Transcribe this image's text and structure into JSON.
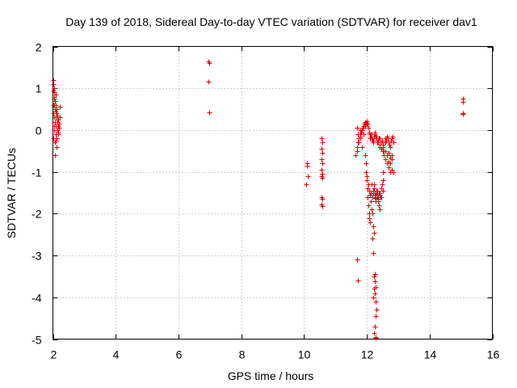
{
  "chart_data": {
    "type": "scatter",
    "title": "Day 139 of 2018, Sidereal Day-to-day VTEC variation (SDTVAR) for receiver dav1",
    "xlabel": "GPS time / hours",
    "ylabel": "SDTVAR / TECUs",
    "xlim": [
      2,
      16
    ],
    "ylim": [
      -5,
      2
    ],
    "x_ticks": [
      2,
      4,
      6,
      8,
      10,
      12,
      14,
      16
    ],
    "y_ticks": [
      2,
      1,
      0,
      -1,
      -2,
      -3,
      -4,
      -5
    ],
    "x_tick_labels": [
      "2",
      "4",
      "6",
      "8",
      "10",
      "12",
      "14",
      "16"
    ],
    "y_tick_labels": [
      "2",
      "1",
      "0",
      "-1",
      "-2",
      "-3",
      "-4",
      "-5"
    ],
    "grid": true,
    "marker": "+",
    "color": "#e00000",
    "series": [
      {
        "name": "dav1",
        "x": [
          2.0,
          2.0,
          2.01,
          2.02,
          2.02,
          2.03,
          2.03,
          2.04,
          2.04,
          2.05,
          2.05,
          2.06,
          2.06,
          2.07,
          2.07,
          2.08,
          2.08,
          2.09,
          2.1,
          2.1,
          2.11,
          2.12,
          2.12,
          2.13,
          2.14,
          2.15,
          2.16,
          2.17,
          2.18,
          2.19,
          2.2,
          2.21,
          2.22,
          2.06,
          2.08,
          2.03,
          2.05,
          2.1,
          2.12,
          2.15,
          2.18,
          2.02,
          2.04,
          6.95,
          6.97,
          6.95,
          6.97,
          10.1,
          10.12,
          10.08,
          10.1,
          10.55,
          10.57,
          10.56,
          10.58,
          10.55,
          10.57,
          10.56,
          10.58,
          10.55,
          10.57,
          10.56,
          10.58,
          10.56,
          10.57,
          11.65,
          11.68,
          11.7,
          11.72,
          11.75,
          11.78,
          11.8,
          11.82,
          11.85,
          11.88,
          11.9,
          11.92,
          11.95,
          11.97,
          12.0,
          12.02,
          12.05,
          12.08,
          12.1,
          12.12,
          12.15,
          12.18,
          12.2,
          12.22,
          12.25,
          12.28,
          12.3,
          12.32,
          12.35,
          12.38,
          12.4,
          12.42,
          12.45,
          12.48,
          12.5,
          12.52,
          12.55,
          12.58,
          12.6,
          12.62,
          12.65,
          12.68,
          12.7,
          12.72,
          12.75,
          12.78,
          12.8,
          12.82,
          12.85,
          11.7,
          11.72,
          11.75,
          11.78,
          11.8,
          11.85,
          11.9,
          11.95,
          12.0,
          12.05,
          12.1,
          12.15,
          12.2,
          12.25,
          12.3,
          12.35,
          12.4,
          12.45,
          12.5,
          12.55,
          12.6,
          12.65,
          12.7,
          12.75,
          12.8,
          11.95,
          11.97,
          11.98,
          12.0,
          12.02,
          12.03,
          12.05,
          12.07,
          12.08,
          12.1,
          12.12,
          12.13,
          12.15,
          12.17,
          12.18,
          12.2,
          12.22,
          12.23,
          12.25,
          12.27,
          12.28,
          12.3,
          12.32,
          12.33,
          12.35,
          12.37,
          12.38,
          12.4,
          12.42,
          12.44,
          12.46,
          12.48,
          12.5,
          12.52,
          11.98,
          12.0,
          12.05,
          12.08,
          12.1,
          12.15,
          12.2,
          12.25,
          12.28,
          12.3,
          12.32,
          12.35,
          12.38,
          12.4,
          12.45,
          12.5,
          12.6,
          12.65,
          12.7,
          12.75,
          12.8,
          12.85,
          12.7,
          12.75,
          12.8,
          11.7,
          11.72,
          12.2,
          12.22,
          12.18,
          12.2,
          12.22,
          12.25,
          12.28,
          12.25,
          12.27,
          12.3,
          12.28,
          12.25,
          12.22,
          12.27,
          12.29,
          12.26,
          12.24,
          12.21,
          15.05,
          15.07,
          15.05,
          15.07
        ],
        "y": [
          0.95,
          0.4,
          1.2,
          -0.2,
          1.1,
          0.9,
          0.6,
          0.8,
          0.3,
          1.0,
          0.0,
          0.7,
          -0.3,
          0.5,
          0.2,
          0.85,
          -0.1,
          0.6,
          0.3,
          0.1,
          -0.2,
          0.4,
          -0.4,
          0.2,
          0.0,
          0.3,
          -0.1,
          0.25,
          0.1,
          0.15,
          0.05,
          0.55,
          0.3,
          -0.6,
          -0.25,
          0.9,
          0.75,
          0.45,
          0.5,
          0.35,
          -0.05,
          0.6,
          0.1,
          1.65,
          1.6,
          1.15,
          0.42,
          -0.85,
          -1.1,
          -1.3,
          -0.8,
          -0.2,
          -0.3,
          -0.45,
          -0.55,
          -0.7,
          -0.8,
          -0.95,
          -1.05,
          -1.1,
          -1.15,
          -1.6,
          -1.65,
          -1.78,
          -1.82,
          -0.6,
          -0.5,
          -0.4,
          -0.3,
          -0.2,
          -0.15,
          -0.1,
          -0.05,
          0.0,
          0.05,
          0.1,
          0.15,
          0.2,
          0.18,
          0.22,
          0.15,
          0.05,
          -0.05,
          -0.1,
          -0.15,
          -0.2,
          -0.25,
          -0.3,
          -0.15,
          -0.1,
          -0.15,
          -0.2,
          -0.3,
          -0.25,
          -0.2,
          -0.35,
          -0.4,
          -0.3,
          -0.25,
          -0.35,
          -0.4,
          -0.5,
          -0.3,
          -0.2,
          -0.25,
          -0.15,
          -0.2,
          -0.3,
          -0.35,
          -0.4,
          -0.25,
          -0.2,
          -0.15,
          -0.3,
          0.05,
          -0.1,
          -0.3,
          -0.2,
          0.0,
          -0.4,
          -0.1,
          0.1,
          0.15,
          0.05,
          -0.2,
          -0.1,
          -0.25,
          -0.05,
          -0.15,
          -0.3,
          -0.2,
          -0.45,
          -0.5,
          -0.6,
          -0.7,
          -0.8,
          -0.9,
          -1.0,
          -0.6,
          -0.6,
          -0.8,
          -1.0,
          -1.2,
          -1.4,
          -1.6,
          -1.8,
          -2.0,
          -2.1,
          -2.2,
          -1.5,
          -1.7,
          -1.9,
          -2.0,
          -1.6,
          -1.5,
          -1.4,
          -1.3,
          -1.6,
          -1.7,
          -1.55,
          -1.5,
          -1.45,
          -1.6,
          -1.65,
          -1.7,
          -1.8,
          -1.9,
          -1.5,
          -1.6,
          -1.4,
          -1.3,
          -1.2,
          -1.0,
          -1.0,
          -1.1,
          -1.3,
          -1.45,
          -1.55,
          -1.3,
          -1.45,
          -1.5,
          -1.62,
          -1.45,
          -1.55,
          -1.6,
          -1.5,
          -1.55,
          -1.6,
          -1.45,
          -0.5,
          -0.6,
          -0.75,
          -0.8,
          -0.95,
          -1.0,
          -0.55,
          -0.65,
          -0.7,
          -3.1,
          -3.6,
          -2.3,
          -2.45,
          -2.6,
          -2.95,
          -3.5,
          -3.62,
          -3.75,
          -3.9,
          -4.1,
          -4.3,
          -4.45,
          -4.7,
          -4.85,
          -4.95,
          -4.98,
          -3.45,
          -3.8,
          -4.0,
          0.76,
          0.68,
          0.4,
          0.38
        ]
      }
    ]
  }
}
